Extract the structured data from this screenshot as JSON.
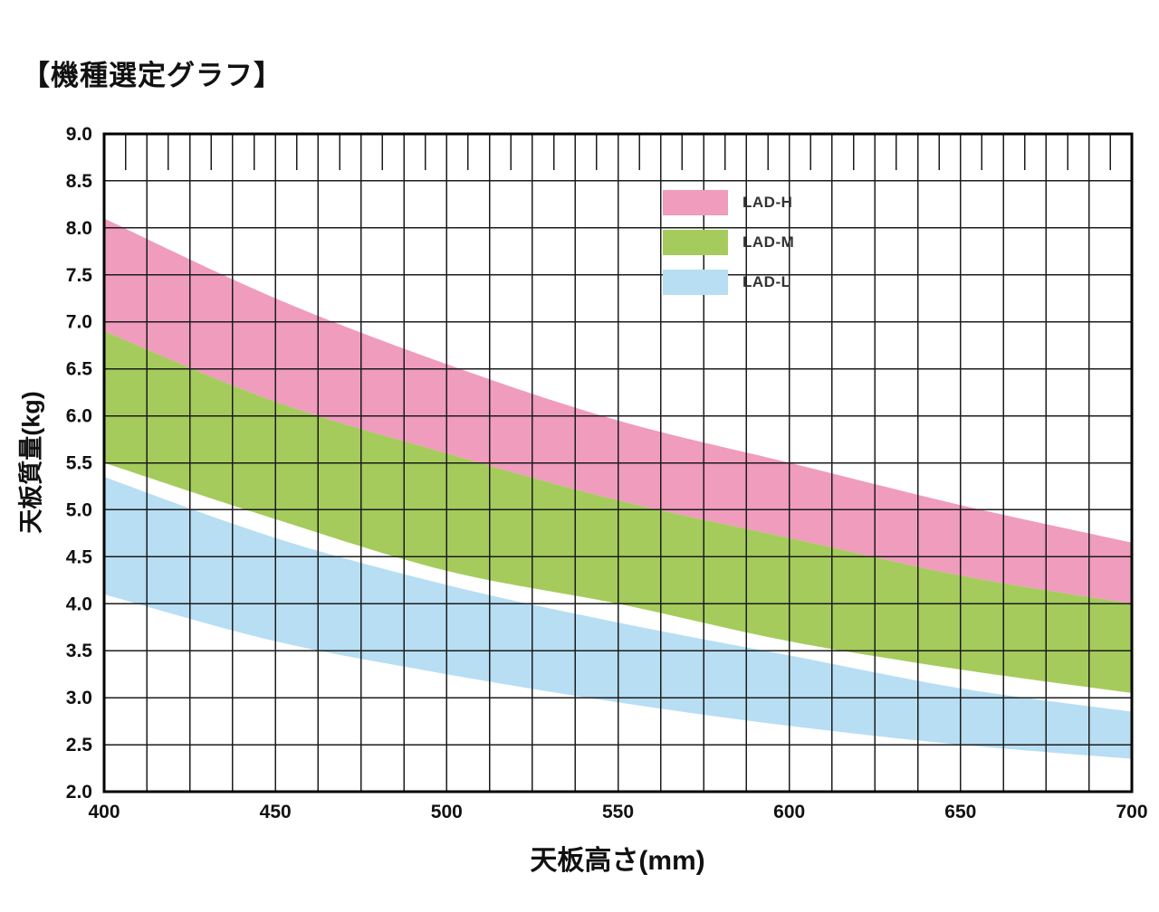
{
  "page": {
    "background": "#ffffff"
  },
  "chart_data": {
    "type": "area",
    "title": "【機種選定グラフ】",
    "xlabel": "天板高さ(mm)",
    "ylabel": "天板質量(kg)",
    "xlim": [
      400,
      700
    ],
    "ylim": [
      2.0,
      9.0
    ],
    "x_tick_labels": [
      "400",
      "450",
      "500",
      "550",
      "600",
      "650",
      "700"
    ],
    "y_tick_labels": [
      "9.0",
      "8.5",
      "8.0",
      "7.5",
      "7.0",
      "6.5",
      "6.0",
      "5.5",
      "5.0",
      "4.5",
      "4.0",
      "3.5",
      "3.0",
      "2.5",
      "2.0"
    ],
    "x_grid_interval": 12.5,
    "y_grid_interval": 0.5,
    "x_top_minor_tick_offset": 6.25,
    "grid": true,
    "grid_color": "#1c1c1c",
    "border_color": "#000000",
    "legend_position": "inside-top-right",
    "x": [
      400,
      450,
      500,
      550,
      600,
      650,
      700
    ],
    "series": [
      {
        "name": "LAD-H",
        "color": "#f09cbd",
        "upper": [
          8.1,
          7.25,
          6.55,
          5.95,
          5.5,
          5.05,
          4.65
        ],
        "lower": [
          6.9,
          6.15,
          5.6,
          5.1,
          4.7,
          4.3,
          4.0
        ]
      },
      {
        "name": "LAD-M",
        "color": "#a5cb5c",
        "upper": [
          6.9,
          6.15,
          5.6,
          5.1,
          4.7,
          4.3,
          4.0
        ],
        "lower": [
          5.5,
          4.9,
          4.35,
          4.0,
          3.6,
          3.3,
          3.05
        ]
      },
      {
        "name": "LAD-L",
        "color": "#b7def3",
        "upper": [
          5.35,
          4.7,
          4.2,
          3.8,
          3.45,
          3.1,
          2.85
        ],
        "lower": [
          4.1,
          3.6,
          3.25,
          2.95,
          2.7,
          2.5,
          2.35
        ]
      }
    ]
  }
}
